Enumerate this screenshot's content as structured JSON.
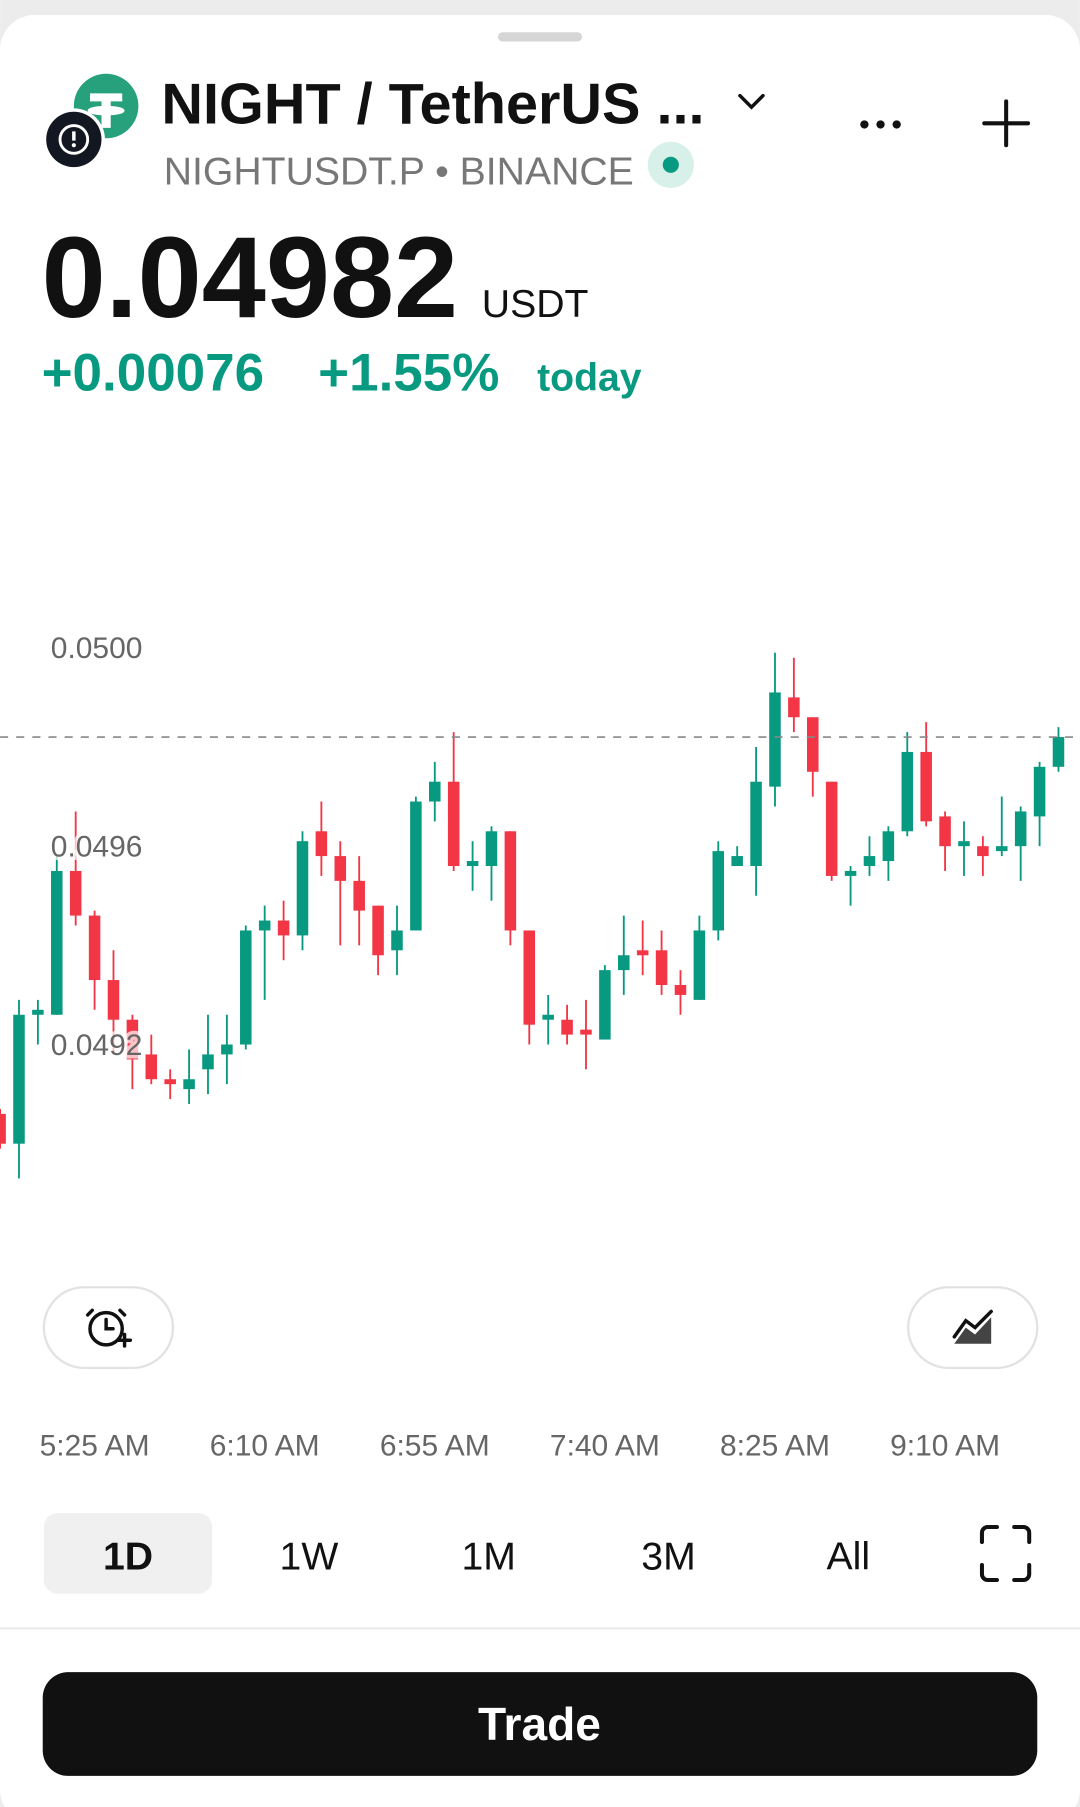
{
  "header": {
    "title": "NIGHT / TetherUS ...",
    "symbol": "NIGHTUSDT.P • BINANCE"
  },
  "price": {
    "value": "0.04982",
    "unit": "USDT",
    "change": "+0.00076",
    "change_percent": "+1.55%",
    "period": "today"
  },
  "chart_data": {
    "type": "candlestick",
    "categories": [
      null,
      null,
      null,
      null,
      null,
      "5:25 AM",
      null,
      null,
      null,
      null,
      null,
      null,
      null,
      null,
      "6:10 AM",
      null,
      null,
      null,
      null,
      null,
      null,
      null,
      null,
      "6:55 AM",
      null,
      null,
      null,
      null,
      null,
      null,
      null,
      null,
      "7:40 AM",
      null,
      null,
      null,
      null,
      null,
      null,
      null,
      null,
      "8:25 AM",
      null,
      null,
      null,
      null,
      null,
      null,
      null,
      null,
      "9:10 AM",
      null,
      null,
      null,
      null,
      null,
      null
    ],
    "open": [
      0.04906,
      0.049,
      0.04926,
      0.04926,
      0.04955,
      0.04946,
      0.04933,
      0.04925,
      0.04918,
      0.04913,
      0.04911,
      0.04915,
      0.04918,
      0.0492,
      0.04943,
      0.04945,
      0.04942,
      0.04963,
      0.04958,
      0.04953,
      0.04948,
      0.04939,
      0.04943,
      0.04969,
      0.04973,
      0.04956,
      0.04956,
      0.04963,
      0.04943,
      0.04925,
      0.04925,
      0.04923,
      0.04921,
      0.04935,
      0.04939,
      0.04939,
      0.04932,
      0.04929,
      0.04943,
      0.04956,
      0.04956,
      0.04972,
      0.0499,
      0.04986,
      0.04973,
      0.04954,
      0.04956,
      0.04957,
      0.04963,
      0.04979,
      0.04966,
      0.0496,
      0.0496,
      0.04959,
      0.0496,
      0.04966,
      0.04976
    ],
    "high": [
      0.04907,
      0.04929,
      0.04929,
      0.04958,
      0.04967,
      0.04947,
      0.04939,
      0.04926,
      0.04922,
      0.04915,
      0.04919,
      0.04926,
      0.04926,
      0.04944,
      0.04948,
      0.04949,
      0.04963,
      0.04969,
      0.04961,
      0.04958,
      0.04948,
      0.04948,
      0.0497,
      0.04977,
      0.04983,
      0.04961,
      0.04964,
      0.04963,
      0.04943,
      0.0493,
      0.04928,
      0.04929,
      0.04936,
      0.04946,
      0.04945,
      0.04943,
      0.04935,
      0.04946,
      0.04961,
      0.0496,
      0.0498,
      0.04999,
      0.04998,
      0.04986,
      0.04973,
      0.04956,
      0.04962,
      0.04964,
      0.04983,
      0.04985,
      0.04967,
      0.04965,
      0.04962,
      0.0497,
      0.04968,
      0.04977,
      0.04984
    ],
    "low": [
      0.04899,
      0.04893,
      0.0492,
      0.04926,
      0.04944,
      0.04927,
      0.04918,
      0.04911,
      0.04912,
      0.04909,
      0.04908,
      0.0491,
      0.04912,
      0.04919,
      0.04929,
      0.04937,
      0.04939,
      0.04954,
      0.0494,
      0.0494,
      0.04934,
      0.04934,
      0.04943,
      0.04965,
      0.04955,
      0.04951,
      0.04949,
      0.0494,
      0.0492,
      0.0492,
      0.0492,
      0.04915,
      0.04921,
      0.0493,
      0.04934,
      0.0493,
      0.04926,
      0.04929,
      0.04941,
      0.04956,
      0.0495,
      0.04968,
      0.04983,
      0.0497,
      0.04953,
      0.04948,
      0.04954,
      0.04953,
      0.04962,
      0.04964,
      0.04955,
      0.04954,
      0.04954,
      0.04958,
      0.04953,
      0.0496,
      0.04975
    ],
    "close": [
      0.049,
      0.04926,
      0.04927,
      0.04955,
      0.04946,
      0.04933,
      0.04925,
      0.04917,
      0.04913,
      0.04912,
      0.04913,
      0.04918,
      0.0492,
      0.04943,
      0.04945,
      0.04942,
      0.04961,
      0.04958,
      0.04953,
      0.04947,
      0.04938,
      0.04943,
      0.04969,
      0.04973,
      0.04956,
      0.04957,
      0.04963,
      0.04943,
      0.04924,
      0.04926,
      0.04922,
      0.04922,
      0.04935,
      0.04938,
      0.04938,
      0.04932,
      0.0493,
      0.04943,
      0.04959,
      0.04958,
      0.04973,
      0.04991,
      0.04986,
      0.04975,
      0.04954,
      0.04955,
      0.04958,
      0.04963,
      0.04979,
      0.04965,
      0.0496,
      0.04961,
      0.04958,
      0.0496,
      0.04967,
      0.04976,
      0.04982
    ],
    "up_color": "#089981",
    "down_color": "#f23645",
    "ylim": [
      0.04875,
      0.0504
    ],
    "yticks": [
      {
        "value": 0.05,
        "label": "0.0500"
      },
      {
        "value": 0.0496,
        "label": "0.0496"
      },
      {
        "value": 0.0492,
        "label": "0.0492"
      }
    ],
    "last_price_line": true
  },
  "ranges": [
    "1D",
    "1W",
    "1M",
    "3M",
    "All"
  ],
  "selected_range": 0,
  "trade_button": "Trade"
}
